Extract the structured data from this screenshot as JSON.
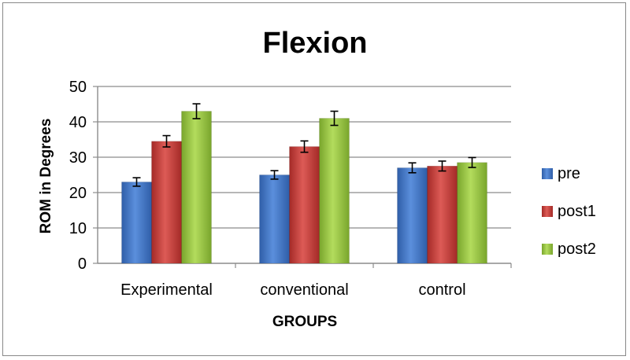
{
  "chart_data": {
    "type": "bar",
    "title": "Flexion",
    "xlabel": "GROUPS",
    "ylabel": "ROM in Degrees",
    "categories": [
      "Experimental",
      "conventional",
      "control"
    ],
    "ylim": [
      0,
      50
    ],
    "yticks": [
      0,
      10,
      20,
      30,
      40,
      50
    ],
    "grid": true,
    "legend_position": "right",
    "series": [
      {
        "name": "pre",
        "color": "#3f73c4",
        "values": [
          23,
          25,
          27
        ],
        "errors": [
          1.2,
          1.2,
          1.4
        ]
      },
      {
        "name": "post1",
        "color": "#c23a36",
        "values": [
          34.5,
          33,
          27.5
        ],
        "errors": [
          1.6,
          1.6,
          1.4
        ]
      },
      {
        "name": "post2",
        "color": "#93c13e",
        "values": [
          43,
          41,
          28.5
        ],
        "errors": [
          2.1,
          2.0,
          1.4
        ]
      }
    ]
  }
}
